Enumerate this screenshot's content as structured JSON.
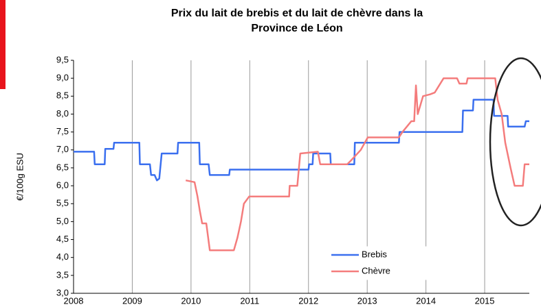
{
  "chart_data": {
    "type": "line",
    "title": [
      "Prix du lait de brebis et du lait de chèvre dans la",
      "Province de Léon"
    ],
    "y_label": "€/100g ESU",
    "xlim": [
      2008,
      2015.76
    ],
    "xticks": [
      2008,
      2009,
      2010,
      2011,
      2012,
      2013,
      2014,
      2015
    ],
    "ylim": [
      3.0,
      9.5
    ],
    "yticks": [
      {
        "value": 3.0,
        "label": "3,0"
      },
      {
        "value": 3.5,
        "label": "3,5"
      },
      {
        "value": 4.0,
        "label": "4,0"
      },
      {
        "value": 4.5,
        "label": "4,5"
      },
      {
        "value": 5.0,
        "label": "5,0"
      },
      {
        "value": 5.5,
        "label": "5,5"
      },
      {
        "value": 6.0,
        "label": "6,0"
      },
      {
        "value": 6.5,
        "label": "6,5"
      },
      {
        "value": 7.0,
        "label": "7,0"
      },
      {
        "value": 7.5,
        "label": "7,5"
      },
      {
        "value": 8.0,
        "label": "8,0"
      },
      {
        "value": 8.5,
        "label": "8,5"
      },
      {
        "value": 9.0,
        "label": "9,0"
      },
      {
        "value": 9.5,
        "label": "9,5"
      }
    ],
    "xgrid": true,
    "legend": "lower right",
    "series": [
      {
        "name": "Brebis",
        "color": "#3a6fef",
        "x": [
          2008,
          2008.35,
          2008.36,
          2008.53,
          2008.54,
          2008.68,
          2008.69,
          2009.12,
          2009.13,
          2009.3,
          2009.32,
          2009.38,
          2009.42,
          2009.46,
          2009.5,
          2009.77,
          2009.78,
          2010.14,
          2010.15,
          2010.3,
          2010.32,
          2010.65,
          2010.66,
          2012.0,
          2012.01,
          2012.07,
          2012.08,
          2012.37,
          2012.38,
          2012.78,
          2012.79,
          2013.54,
          2013.55,
          2014.62,
          2014.63,
          2014.8,
          2014.81,
          2015.15,
          2015.16,
          2015.39,
          2015.4,
          2015.68,
          2015.7,
          2015.76
        ],
        "values": [
          6.95,
          6.95,
          6.6,
          6.6,
          7.03,
          7.03,
          7.2,
          7.2,
          6.6,
          6.6,
          6.3,
          6.3,
          6.15,
          6.2,
          6.9,
          6.9,
          7.2,
          7.2,
          6.6,
          6.6,
          6.3,
          6.3,
          6.45,
          6.45,
          6.6,
          6.6,
          6.9,
          6.9,
          6.6,
          6.6,
          7.2,
          7.2,
          7.5,
          7.5,
          8.1,
          8.1,
          8.4,
          8.4,
          7.95,
          7.95,
          7.65,
          7.65,
          7.8,
          7.8
        ]
      },
      {
        "name": "Chèvre",
        "color": "#f47c7c",
        "x": [
          2009.91,
          2010.06,
          2010.11,
          2010.15,
          2010.19,
          2010.26,
          2010.32,
          2010.73,
          2010.79,
          2010.85,
          2010.9,
          2010.99,
          2011.67,
          2011.68,
          2011.81,
          2011.86,
          2012.16,
          2012.2,
          2012.66,
          2012.72,
          2012.89,
          2013.01,
          2013.54,
          2013.6,
          2013.75,
          2013.8,
          2013.83,
          2013.86,
          2013.95,
          2014.07,
          2014.15,
          2014.3,
          2014.53,
          2014.57,
          2014.69,
          2014.71,
          2015.18,
          2015.22,
          2015.29,
          2015.35,
          2015.44,
          2015.51,
          2015.65,
          2015.68,
          2015.76
        ],
        "values": [
          6.15,
          6.1,
          5.7,
          5.3,
          4.95,
          4.95,
          4.2,
          4.2,
          4.55,
          5.0,
          5.5,
          5.7,
          5.7,
          6.0,
          6.0,
          6.9,
          6.95,
          6.6,
          6.6,
          6.7,
          7.0,
          7.35,
          7.35,
          7.5,
          7.8,
          7.8,
          8.8,
          8.0,
          8.5,
          8.55,
          8.6,
          9.0,
          9.0,
          8.85,
          8.85,
          9.0,
          9.0,
          8.4,
          8.0,
          7.2,
          6.5,
          6.0,
          6.0,
          6.6,
          6.6
        ]
      }
    ]
  }
}
